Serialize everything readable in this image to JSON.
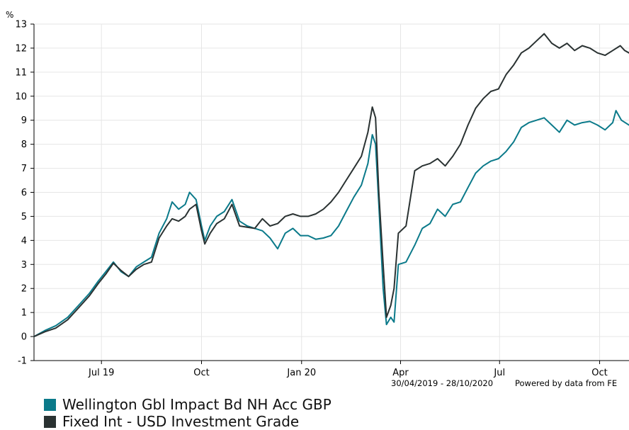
{
  "chart_data": {
    "type": "line",
    "title": "",
    "ylabel": "%",
    "ylim": [
      -1,
      13
    ],
    "yticks": [
      -1,
      0,
      1,
      2,
      3,
      4,
      5,
      6,
      7,
      8,
      9,
      10,
      11,
      12,
      13
    ],
    "xlim": [
      "2019-04-30",
      "2020-10-28"
    ],
    "xticks": [
      {
        "label": "Jul 19",
        "date": "2019-07-01"
      },
      {
        "label": "Oct",
        "date": "2019-10-01"
      },
      {
        "label": "Jan 20",
        "date": "2020-01-01"
      },
      {
        "label": "Apr",
        "date": "2020-04-01"
      },
      {
        "label": "Jul",
        "date": "2020-07-01"
      },
      {
        "label": "Oct",
        "date": "2020-10-01"
      }
    ],
    "grid": true,
    "legend_position": "bottom",
    "date_range_text": "30/04/2019 - 28/10/2020",
    "credit_text": "Powered by data from FE",
    "series": [
      {
        "name": "Wellington Gbl Impact Bd NH Acc GBP",
        "color": "#0b7a8a",
        "points": [
          [
            "2019-04-30",
            0.0
          ],
          [
            "2019-05-10",
            0.25
          ],
          [
            "2019-05-20",
            0.45
          ],
          [
            "2019-05-31",
            0.8
          ],
          [
            "2019-06-10",
            1.3
          ],
          [
            "2019-06-20",
            1.8
          ],
          [
            "2019-06-28",
            2.3
          ],
          [
            "2019-07-05",
            2.7
          ],
          [
            "2019-07-12",
            3.1
          ],
          [
            "2019-07-19",
            2.7
          ],
          [
            "2019-07-26",
            2.5
          ],
          [
            "2019-08-02",
            2.9
          ],
          [
            "2019-08-09",
            3.1
          ],
          [
            "2019-08-16",
            3.3
          ],
          [
            "2019-08-23",
            4.3
          ],
          [
            "2019-08-30",
            4.9
          ],
          [
            "2019-09-04",
            5.6
          ],
          [
            "2019-09-10",
            5.3
          ],
          [
            "2019-09-16",
            5.5
          ],
          [
            "2019-09-20",
            6.0
          ],
          [
            "2019-09-26",
            5.7
          ],
          [
            "2019-10-01",
            4.6
          ],
          [
            "2019-10-04",
            4.0
          ],
          [
            "2019-10-09",
            4.6
          ],
          [
            "2019-10-15",
            5.0
          ],
          [
            "2019-10-22",
            5.2
          ],
          [
            "2019-10-29",
            5.7
          ],
          [
            "2019-11-05",
            4.8
          ],
          [
            "2019-11-12",
            4.6
          ],
          [
            "2019-11-19",
            4.5
          ],
          [
            "2019-11-26",
            4.4
          ],
          [
            "2019-12-03",
            4.1
          ],
          [
            "2019-12-10",
            3.65
          ],
          [
            "2019-12-17",
            4.3
          ],
          [
            "2019-12-24",
            4.5
          ],
          [
            "2019-12-31",
            4.2
          ],
          [
            "2020-01-07",
            4.2
          ],
          [
            "2020-01-14",
            4.05
          ],
          [
            "2020-01-21",
            4.1
          ],
          [
            "2020-01-28",
            4.2
          ],
          [
            "2020-02-04",
            4.6
          ],
          [
            "2020-02-11",
            5.2
          ],
          [
            "2020-02-18",
            5.8
          ],
          [
            "2020-02-25",
            6.3
          ],
          [
            "2020-03-02",
            7.2
          ],
          [
            "2020-03-06",
            8.4
          ],
          [
            "2020-03-09",
            8.0
          ],
          [
            "2020-03-12",
            5.5
          ],
          [
            "2020-03-16",
            2.0
          ],
          [
            "2020-03-19",
            0.5
          ],
          [
            "2020-03-23",
            0.8
          ],
          [
            "2020-03-26",
            0.6
          ],
          [
            "2020-03-30",
            3.0
          ],
          [
            "2020-04-06",
            3.1
          ],
          [
            "2020-04-14",
            3.8
          ],
          [
            "2020-04-21",
            4.5
          ],
          [
            "2020-04-28",
            4.7
          ],
          [
            "2020-05-05",
            5.3
          ],
          [
            "2020-05-12",
            5.0
          ],
          [
            "2020-05-19",
            5.5
          ],
          [
            "2020-05-26",
            5.6
          ],
          [
            "2020-06-02",
            6.2
          ],
          [
            "2020-06-09",
            6.8
          ],
          [
            "2020-06-16",
            7.1
          ],
          [
            "2020-06-23",
            7.3
          ],
          [
            "2020-06-30",
            7.4
          ],
          [
            "2020-07-07",
            7.7
          ],
          [
            "2020-07-14",
            8.1
          ],
          [
            "2020-07-21",
            8.7
          ],
          [
            "2020-07-28",
            8.9
          ],
          [
            "2020-08-04",
            9.0
          ],
          [
            "2020-08-11",
            9.1
          ],
          [
            "2020-08-18",
            8.8
          ],
          [
            "2020-08-25",
            8.5
          ],
          [
            "2020-09-01",
            9.0
          ],
          [
            "2020-09-08",
            8.8
          ],
          [
            "2020-09-15",
            8.9
          ],
          [
            "2020-09-22",
            8.95
          ],
          [
            "2020-09-29",
            8.8
          ],
          [
            "2020-10-06",
            8.6
          ],
          [
            "2020-10-13",
            8.9
          ],
          [
            "2020-10-16",
            9.4
          ],
          [
            "2020-10-21",
            9.0
          ],
          [
            "2020-10-28",
            8.8
          ]
        ]
      },
      {
        "name": "Fixed Int - USD Investment Grade",
        "color": "#2a3232",
        "points": [
          [
            "2019-04-30",
            0.0
          ],
          [
            "2019-05-10",
            0.2
          ],
          [
            "2019-05-20",
            0.35
          ],
          [
            "2019-05-31",
            0.7
          ],
          [
            "2019-06-10",
            1.2
          ],
          [
            "2019-06-20",
            1.7
          ],
          [
            "2019-06-28",
            2.2
          ],
          [
            "2019-07-05",
            2.6
          ],
          [
            "2019-07-12",
            3.05
          ],
          [
            "2019-07-19",
            2.75
          ],
          [
            "2019-07-26",
            2.5
          ],
          [
            "2019-08-02",
            2.8
          ],
          [
            "2019-08-09",
            3.0
          ],
          [
            "2019-08-16",
            3.1
          ],
          [
            "2019-08-23",
            4.1
          ],
          [
            "2019-08-30",
            4.6
          ],
          [
            "2019-09-04",
            4.9
          ],
          [
            "2019-09-10",
            4.8
          ],
          [
            "2019-09-16",
            5.0
          ],
          [
            "2019-09-20",
            5.3
          ],
          [
            "2019-09-26",
            5.5
          ],
          [
            "2019-10-01",
            4.4
          ],
          [
            "2019-10-04",
            3.85
          ],
          [
            "2019-10-09",
            4.3
          ],
          [
            "2019-10-15",
            4.7
          ],
          [
            "2019-10-22",
            4.9
          ],
          [
            "2019-10-29",
            5.5
          ],
          [
            "2019-11-05",
            4.6
          ],
          [
            "2019-11-12",
            4.55
          ],
          [
            "2019-11-19",
            4.5
          ],
          [
            "2019-11-26",
            4.9
          ],
          [
            "2019-12-03",
            4.6
          ],
          [
            "2019-12-10",
            4.7
          ],
          [
            "2019-12-17",
            5.0
          ],
          [
            "2019-12-24",
            5.1
          ],
          [
            "2019-12-31",
            5.0
          ],
          [
            "2020-01-07",
            5.0
          ],
          [
            "2020-01-14",
            5.1
          ],
          [
            "2020-01-21",
            5.3
          ],
          [
            "2020-01-28",
            5.6
          ],
          [
            "2020-02-04",
            6.0
          ],
          [
            "2020-02-11",
            6.5
          ],
          [
            "2020-02-18",
            7.0
          ],
          [
            "2020-02-25",
            7.5
          ],
          [
            "2020-03-02",
            8.5
          ],
          [
            "2020-03-06",
            9.55
          ],
          [
            "2020-03-09",
            9.1
          ],
          [
            "2020-03-12",
            6.0
          ],
          [
            "2020-03-16",
            3.0
          ],
          [
            "2020-03-19",
            0.8
          ],
          [
            "2020-03-23",
            1.3
          ],
          [
            "2020-03-26",
            2.0
          ],
          [
            "2020-03-30",
            4.3
          ],
          [
            "2020-04-06",
            4.6
          ],
          [
            "2020-04-14",
            6.9
          ],
          [
            "2020-04-21",
            7.1
          ],
          [
            "2020-04-28",
            7.2
          ],
          [
            "2020-05-05",
            7.4
          ],
          [
            "2020-05-12",
            7.1
          ],
          [
            "2020-05-19",
            7.5
          ],
          [
            "2020-05-26",
            8.0
          ],
          [
            "2020-06-02",
            8.8
          ],
          [
            "2020-06-09",
            9.5
          ],
          [
            "2020-06-16",
            9.9
          ],
          [
            "2020-06-23",
            10.2
          ],
          [
            "2020-06-30",
            10.3
          ],
          [
            "2020-07-07",
            10.9
          ],
          [
            "2020-07-14",
            11.3
          ],
          [
            "2020-07-21",
            11.8
          ],
          [
            "2020-07-28",
            12.0
          ],
          [
            "2020-08-04",
            12.3
          ],
          [
            "2020-08-11",
            12.6
          ],
          [
            "2020-08-18",
            12.2
          ],
          [
            "2020-08-25",
            12.0
          ],
          [
            "2020-09-01",
            12.2
          ],
          [
            "2020-09-08",
            11.9
          ],
          [
            "2020-09-15",
            12.1
          ],
          [
            "2020-09-22",
            12.0
          ],
          [
            "2020-09-29",
            11.8
          ],
          [
            "2020-10-06",
            11.7
          ],
          [
            "2020-10-13",
            11.9
          ],
          [
            "2020-10-20",
            12.1
          ],
          [
            "2020-10-24",
            11.9
          ],
          [
            "2020-10-28",
            11.8
          ]
        ]
      }
    ]
  }
}
